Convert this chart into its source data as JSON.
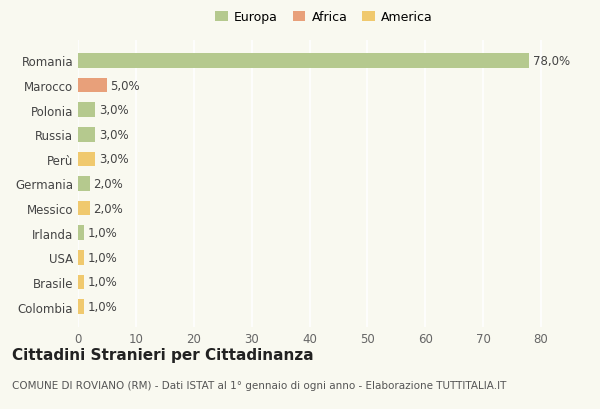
{
  "countries": [
    "Colombia",
    "Brasile",
    "USA",
    "Irlanda",
    "Messico",
    "Germania",
    "Perù",
    "Russia",
    "Polonia",
    "Marocco",
    "Romania"
  ],
  "values": [
    1.0,
    1.0,
    1.0,
    1.0,
    2.0,
    2.0,
    3.0,
    3.0,
    3.0,
    5.0,
    78.0
  ],
  "colors": [
    "#f0c96e",
    "#f0c96e",
    "#f0c96e",
    "#b5c98e",
    "#f0c96e",
    "#b5c98e",
    "#f0c96e",
    "#b5c98e",
    "#b5c98e",
    "#e8a07a",
    "#b5c98e"
  ],
  "categories": [
    "Europa",
    "Africa",
    "America"
  ],
  "legend_colors": [
    "#b5c98e",
    "#e8a07a",
    "#f0c96e"
  ],
  "xlim": [
    0,
    85
  ],
  "xticks": [
    0,
    10,
    20,
    30,
    40,
    50,
    60,
    70,
    80
  ],
  "title": "Cittadini Stranieri per Cittadinanza",
  "subtitle": "COMUNE DI ROVIANO (RM) - Dati ISTAT al 1° gennaio di ogni anno - Elaborazione TUTTITALIA.IT",
  "background_color": "#f9f9f0",
  "grid_color": "#ffffff",
  "title_fontsize": 11,
  "subtitle_fontsize": 7.5,
  "tick_fontsize": 8.5,
  "legend_fontsize": 9
}
